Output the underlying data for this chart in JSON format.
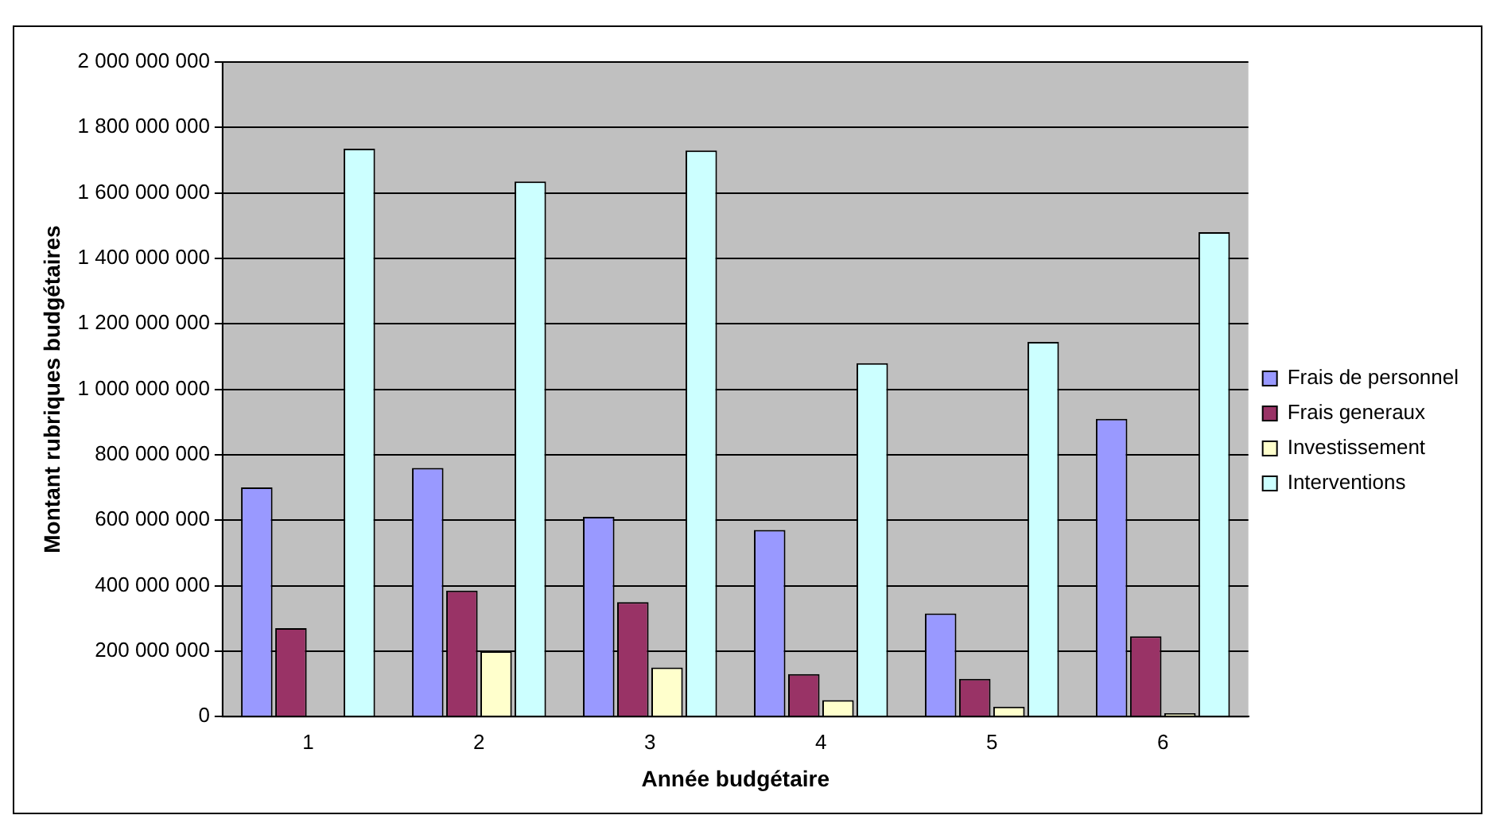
{
  "chart_data": {
    "type": "bar",
    "xlabel": "Année budgétaire",
    "ylabel": "Montant rubriques budgétaires",
    "categories": [
      "1",
      "2",
      "3",
      "4",
      "5",
      "6"
    ],
    "series": [
      {
        "name": "Frais de personnel",
        "color": "#9999ff",
        "values": [
          700000000,
          760000000,
          610000000,
          570000000,
          315000000,
          910000000
        ]
      },
      {
        "name": "Frais generaux",
        "color": "#993366",
        "values": [
          270000000,
          385000000,
          350000000,
          130000000,
          115000000,
          245000000
        ]
      },
      {
        "name": "Investissement",
        "color": "#ffffcc",
        "values": [
          0,
          200000000,
          150000000,
          50000000,
          30000000,
          10000000
        ]
      },
      {
        "name": "Interventions",
        "color": "#ccffff",
        "values": [
          1735000000,
          1635000000,
          1730000000,
          1080000000,
          1145000000,
          1480000000
        ]
      }
    ],
    "ylim": [
      0,
      2000000000
    ],
    "yticks": [
      {
        "value": 0,
        "label": "0"
      },
      {
        "value": 200000000,
        "label": "200 000 000"
      },
      {
        "value": 400000000,
        "label": "400 000 000"
      },
      {
        "value": 600000000,
        "label": "600 000 000"
      },
      {
        "value": 800000000,
        "label": "800 000 000"
      },
      {
        "value": 1000000000,
        "label": "1 000 000 000"
      },
      {
        "value": 1200000000,
        "label": "1 200 000 000"
      },
      {
        "value": 1400000000,
        "label": "1 400 000 000"
      },
      {
        "value": 1600000000,
        "label": "1 600 000 000"
      },
      {
        "value": 1800000000,
        "label": "1 800 000 000"
      },
      {
        "value": 2000000000,
        "label": "2 000 000 000"
      }
    ],
    "grid": "y",
    "legend": "right"
  }
}
